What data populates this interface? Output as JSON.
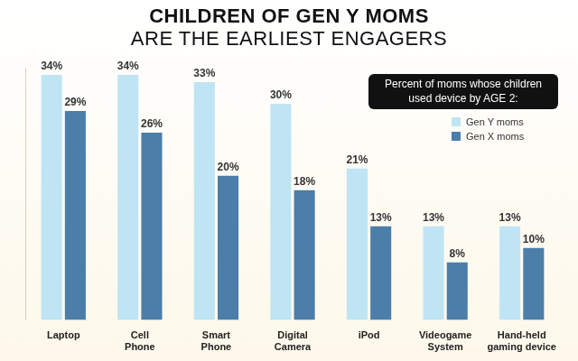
{
  "chart_data": {
    "type": "bar",
    "title": "CHILDREN OF GEN Y MOMS\nARE THE EARLIEST ENGAGERS",
    "legend_title": "Percent of moms whose children used device by AGE 2:",
    "categories": [
      "Laptop",
      "Cell Phone",
      "Smart Phone",
      "Digital Camera",
      "iPod",
      "Videogame System",
      "Hand-held gaming device"
    ],
    "series": [
      {
        "name": "Gen Y moms",
        "color": "#bfe4f4",
        "values": [
          34,
          34,
          33,
          30,
          21,
          13,
          13
        ],
        "value_labels": [
          "34%",
          "34%",
          "33%",
          "30%",
          "21%",
          "13%",
          "13%"
        ]
      },
      {
        "name": "Gen X moms",
        "color": "#4b7ea8",
        "values": [
          29,
          26,
          20,
          18,
          13,
          8,
          10
        ],
        "value_labels": [
          "29%",
          "26%",
          "20%",
          "18%",
          "13%",
          "8%",
          "10%"
        ]
      }
    ],
    "ylim": [
      0,
      35
    ],
    "grid": false,
    "legend": "top-right",
    "data_labels": true,
    "tick_labels": "x"
  }
}
